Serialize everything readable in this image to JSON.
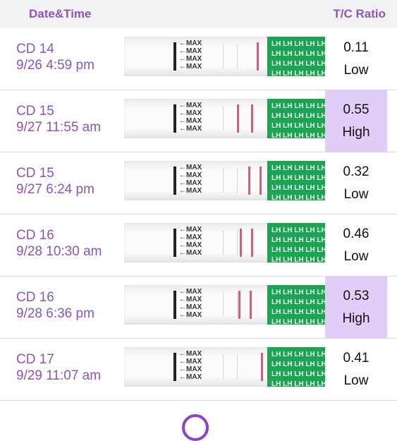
{
  "header": {
    "left": "Date&Time",
    "right": "T/C Ratio"
  },
  "rows": [
    {
      "cd": "CD 14",
      "time": "9/26 4:59 pm",
      "ratio": "0.11",
      "level": "Low",
      "high": false
    },
    {
      "cd": "CD 15",
      "time": "9/27 11:55 am",
      "ratio": "0.55",
      "level": "High",
      "high": true
    },
    {
      "cd": "CD 15",
      "time": "9/27 6:24 pm",
      "ratio": "0.32",
      "level": "Low",
      "high": false
    },
    {
      "cd": "CD 16",
      "time": "9/28 10:30 am",
      "ratio": "0.46",
      "level": "Low",
      "high": false
    },
    {
      "cd": "CD 16",
      "time": "9/28 6:36 pm",
      "ratio": "0.53",
      "level": "High",
      "high": true
    },
    {
      "cd": "CD 17",
      "time": "9/29 11:07 am",
      "ratio": "0.41",
      "level": "Low",
      "high": false
    }
  ],
  "strip": {
    "max_label": "MAX",
    "brand_label": "LH"
  },
  "colors": {
    "accent": "#8e55b8",
    "high_bg": "#e0cdf8",
    "strip_green": "#1da453",
    "test_line": "#c8647c"
  }
}
